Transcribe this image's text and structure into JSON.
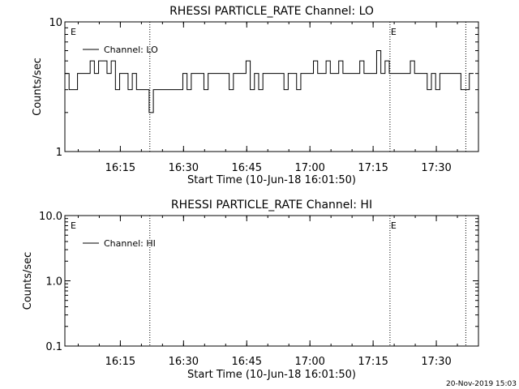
{
  "footer_timestamp": "20-Nov-2019 15:03",
  "chart_data": [
    {
      "type": "line",
      "title": "RHESSI PARTICLE_RATE Channel: LO",
      "xlabel": "Start Time (10-Jun-18 16:01:50)",
      "ylabel": "Counts/sec",
      "yscale": "log",
      "ylim": [
        1,
        10
      ],
      "ytick_labels": [
        "1",
        "10"
      ],
      "xlim": [
        "16:01:50",
        "17:40:00"
      ],
      "xtick_labels": [
        "16:15",
        "16:30",
        "16:45",
        "17:00",
        "17:15",
        "17:30"
      ],
      "legend": {
        "placement": "top-left",
        "entries": [
          "Channel: LO"
        ]
      },
      "grid": false,
      "event_markers": [
        {
          "time": "16:03:00",
          "label": "E",
          "dotted_line": false
        },
        {
          "time": "16:22:00",
          "label": "",
          "dotted_line": true
        },
        {
          "time": "17:19:00",
          "label": "E",
          "dotted_line": true
        },
        {
          "time": "17:37:00",
          "label": "",
          "dotted_line": true
        }
      ],
      "series": [
        {
          "name": "Channel: LO",
          "x": [
            "16:01:50",
            "16:02:50",
            "16:03:50",
            "16:04:50",
            "16:05:50",
            "16:06:50",
            "16:07:50",
            "16:08:50",
            "16:09:50",
            "16:10:50",
            "16:11:50",
            "16:12:50",
            "16:13:50",
            "16:14:50",
            "16:15:50",
            "16:16:50",
            "16:17:50",
            "16:18:50",
            "16:19:50",
            "16:20:50",
            "16:21:50",
            "16:22:50",
            "16:23:50",
            "16:24:50",
            "16:25:50",
            "16:26:50",
            "16:27:50",
            "16:28:50",
            "16:29:50",
            "16:30:50",
            "16:31:50",
            "16:32:50",
            "16:33:50",
            "16:34:50",
            "16:35:50",
            "16:36:50",
            "16:37:50",
            "16:38:50",
            "16:39:50",
            "16:40:50",
            "16:41:50",
            "16:42:50",
            "16:43:50",
            "16:44:50",
            "16:45:50",
            "16:46:50",
            "16:47:50",
            "16:48:50",
            "16:49:50",
            "16:50:50",
            "16:51:50",
            "16:52:50",
            "16:53:50",
            "16:54:50",
            "16:55:50",
            "16:56:50",
            "16:57:50",
            "16:58:50",
            "16:59:50",
            "17:00:50",
            "17:01:50",
            "17:02:50",
            "17:03:50",
            "17:04:50",
            "17:05:50",
            "17:06:50",
            "17:07:50",
            "17:08:50",
            "17:09:50",
            "17:10:50",
            "17:11:50",
            "17:12:50",
            "17:13:50",
            "17:14:50",
            "17:15:50",
            "17:16:50",
            "17:17:50",
            "17:18:50",
            "17:19:50",
            "17:20:50",
            "17:21:50",
            "17:22:50",
            "17:23:50",
            "17:24:50",
            "17:25:50",
            "17:26:50",
            "17:27:50",
            "17:28:50",
            "17:29:50",
            "17:30:50",
            "17:31:50",
            "17:32:50",
            "17:33:50",
            "17:34:50",
            "17:35:50",
            "17:36:50",
            "17:37:50"
          ],
          "values": [
            4,
            3,
            3,
            4,
            4,
            4,
            5,
            4,
            5,
            5,
            4,
            5,
            3,
            4,
            4,
            3,
            4,
            3,
            3,
            3,
            2,
            3,
            3,
            3,
            3,
            3,
            3,
            3,
            4,
            3,
            4,
            4,
            4,
            3,
            4,
            4,
            4,
            4,
            4,
            3,
            4,
            4,
            4,
            5,
            3,
            4,
            3,
            4,
            4,
            4,
            4,
            4,
            3,
            4,
            4,
            3,
            4,
            4,
            4,
            5,
            4,
            4,
            5,
            4,
            4,
            5,
            4,
            4,
            4,
            4,
            5,
            4,
            4,
            4,
            6,
            4,
            5,
            4,
            4,
            4,
            4,
            4,
            5,
            4,
            4,
            4,
            3,
            4,
            3,
            4,
            4,
            4,
            4,
            4,
            3,
            3,
            4
          ]
        }
      ]
    },
    {
      "type": "line",
      "title": "RHESSI PARTICLE_RATE Channel: HI",
      "xlabel": "Start Time (10-Jun-18 16:01:50)",
      "ylabel": "Counts/sec",
      "yscale": "log",
      "ylim": [
        0.1,
        10.0
      ],
      "ytick_labels": [
        "0.1",
        "1.0",
        "10.0"
      ],
      "xlim": [
        "16:01:50",
        "17:40:00"
      ],
      "xtick_labels": [
        "16:15",
        "16:30",
        "16:45",
        "17:00",
        "17:15",
        "17:30"
      ],
      "legend": {
        "placement": "top-left",
        "entries": [
          "Channel: HI"
        ]
      },
      "grid": false,
      "event_markers": [
        {
          "time": "16:03:00",
          "label": "E",
          "dotted_line": false
        },
        {
          "time": "16:22:00",
          "label": "",
          "dotted_line": true
        },
        {
          "time": "17:19:00",
          "label": "E",
          "dotted_line": true
        },
        {
          "time": "17:37:00",
          "label": "",
          "dotted_line": true
        }
      ],
      "series": [
        {
          "name": "Channel: HI",
          "x": [],
          "values": []
        }
      ]
    }
  ]
}
